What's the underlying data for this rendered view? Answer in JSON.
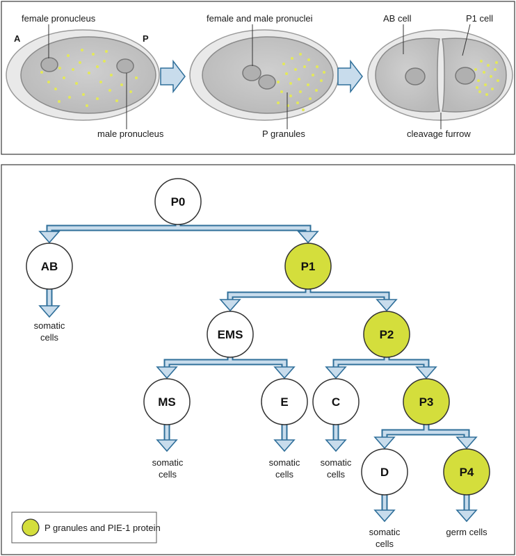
{
  "colors": {
    "arrow_fill": "#c8dcec",
    "arrow_edge": "#2f6f9a",
    "p_lineage_fill": "#d4de3c",
    "cell_outer": "#e8e8e8",
    "cell_inner": "#c9c9c9",
    "granule": "#e6ea5e"
  },
  "top_panel": {
    "labels": {
      "anterior": "A",
      "posterior": "P",
      "female_pronucleus": "female pronucleus",
      "male_pronucleus": "male pronucleus",
      "both_pronuclei": "female and male pronuclei",
      "p_granules": "P granules",
      "ab_cell": "AB cell",
      "p1_cell": "P1 cell",
      "cleavage_furrow": "cleavage furrow"
    }
  },
  "lineage": {
    "nodes": {
      "P0": "P0",
      "AB": "AB",
      "P1": "P1",
      "EMS": "EMS",
      "P2": "P2",
      "MS": "MS",
      "E": "E",
      "C": "C",
      "P3": "P3",
      "D": "D",
      "P4": "P4"
    },
    "fates": {
      "somatic_line1": "somatic",
      "somatic_line2": "cells",
      "germ": "germ cells"
    }
  },
  "legend": {
    "label": "P granules and PIE-1 protein"
  }
}
